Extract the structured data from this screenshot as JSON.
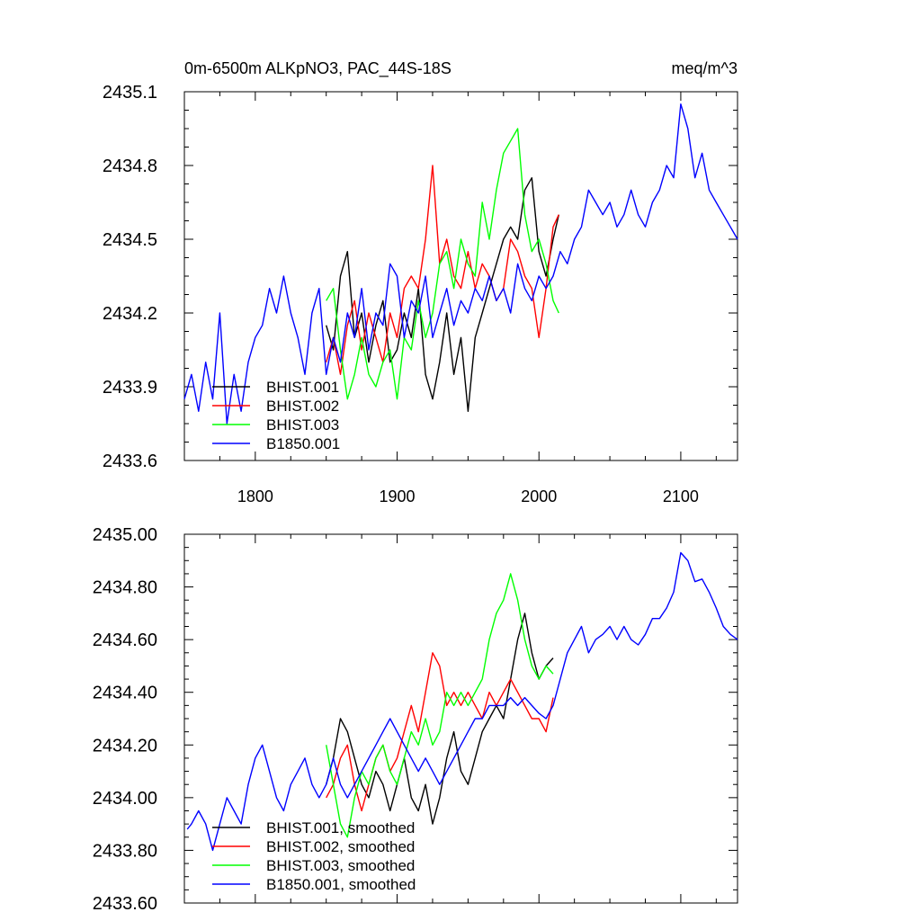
{
  "chart_data": [
    {
      "type": "line",
      "title": "0m-6500m ALKpNO3, PAC_44S-18S",
      "units": "meq/m^3",
      "xlabel": "",
      "ylabel": "",
      "xlim": [
        1750,
        2140
      ],
      "ylim": [
        2433.6,
        2435.1
      ],
      "xticks": [
        1800,
        1900,
        2000,
        2100
      ],
      "xtick_labels": [
        "1800",
        "1900",
        "2000",
        "2100"
      ],
      "yticks": [
        2433.6,
        2433.9,
        2434.2,
        2434.5,
        2434.8,
        2435.1
      ],
      "ytick_labels": [
        "2433.6",
        "2433.9",
        "2434.2",
        "2434.5",
        "2434.8",
        "2435.1"
      ],
      "legend_position": "bottom-left",
      "series": [
        {
          "name": "BHIST.001",
          "color": "#000000",
          "x": [
            1850,
            1855,
            1860,
            1865,
            1870,
            1875,
            1880,
            1885,
            1890,
            1895,
            1900,
            1905,
            1910,
            1915,
            1920,
            1925,
            1930,
            1935,
            1940,
            1945,
            1950,
            1955,
            1960,
            1965,
            1970,
            1975,
            1980,
            1985,
            1990,
            1995,
            2000,
            2005,
            2010,
            2014
          ],
          "values": [
            2434.15,
            2434.05,
            2434.35,
            2434.45,
            2434.1,
            2434.2,
            2434.0,
            2434.15,
            2434.25,
            2434.0,
            2434.05,
            2434.2,
            2434.1,
            2434.3,
            2433.95,
            2433.85,
            2434.0,
            2434.2,
            2433.95,
            2434.1,
            2433.8,
            2434.1,
            2434.2,
            2434.3,
            2434.4,
            2434.5,
            2434.55,
            2434.5,
            2434.7,
            2434.75,
            2434.45,
            2434.35,
            2434.5,
            2434.6
          ]
        },
        {
          "name": "BHIST.002",
          "color": "#ff0000",
          "x": [
            1850,
            1855,
            1860,
            1865,
            1870,
            1875,
            1880,
            1885,
            1890,
            1895,
            1900,
            1905,
            1910,
            1915,
            1920,
            1925,
            1930,
            1935,
            1940,
            1945,
            1950,
            1955,
            1960,
            1965,
            1970,
            1975,
            1980,
            1985,
            1990,
            1995,
            2000,
            2005,
            2010,
            2014
          ],
          "values": [
            2434.0,
            2434.1,
            2433.95,
            2434.15,
            2434.25,
            2434.05,
            2434.2,
            2434.1,
            2434.0,
            2434.2,
            2434.1,
            2434.3,
            2434.35,
            2434.3,
            2434.5,
            2434.8,
            2434.4,
            2434.5,
            2434.35,
            2434.3,
            2434.45,
            2434.3,
            2434.4,
            2434.35,
            2434.25,
            2434.3,
            2434.5,
            2434.45,
            2434.35,
            2434.3,
            2434.1,
            2434.3,
            2434.55,
            2434.6
          ]
        },
        {
          "name": "BHIST.003",
          "color": "#00ff00",
          "x": [
            1850,
            1855,
            1860,
            1865,
            1870,
            1875,
            1880,
            1885,
            1890,
            1895,
            1900,
            1905,
            1910,
            1915,
            1920,
            1925,
            1930,
            1935,
            1940,
            1945,
            1950,
            1955,
            1960,
            1965,
            1970,
            1975,
            1980,
            1985,
            1990,
            1995,
            2000,
            2005,
            2010,
            2014
          ],
          "values": [
            2434.25,
            2434.3,
            2434.05,
            2433.85,
            2433.95,
            2434.1,
            2433.95,
            2433.9,
            2434.0,
            2434.05,
            2433.85,
            2434.1,
            2434.05,
            2434.25,
            2434.1,
            2434.2,
            2434.4,
            2434.45,
            2434.3,
            2434.5,
            2434.4,
            2434.35,
            2434.65,
            2434.5,
            2434.7,
            2434.85,
            2434.9,
            2434.95,
            2434.6,
            2434.45,
            2434.5,
            2434.4,
            2434.25,
            2434.2
          ]
        },
        {
          "name": "B1850.001",
          "color": "#0000ff",
          "x": [
            1750,
            1755,
            1760,
            1765,
            1770,
            1775,
            1780,
            1785,
            1790,
            1795,
            1800,
            1805,
            1810,
            1815,
            1820,
            1825,
            1830,
            1835,
            1840,
            1845,
            1850,
            1855,
            1860,
            1865,
            1870,
            1875,
            1880,
            1885,
            1890,
            1895,
            1900,
            1905,
            1910,
            1915,
            1920,
            1925,
            1930,
            1935,
            1940,
            1945,
            1950,
            1955,
            1960,
            1965,
            1970,
            1975,
            1980,
            1985,
            1990,
            1995,
            2000,
            2005,
            2010,
            2015,
            2020,
            2025,
            2030,
            2035,
            2040,
            2045,
            2050,
            2055,
            2060,
            2065,
            2070,
            2075,
            2080,
            2085,
            2090,
            2095,
            2100,
            2105,
            2110,
            2115,
            2120,
            2125,
            2130,
            2135,
            2140
          ],
          "values": [
            2433.85,
            2433.95,
            2433.8,
            2434.0,
            2433.85,
            2434.2,
            2433.75,
            2433.95,
            2433.8,
            2434.0,
            2434.1,
            2434.15,
            2434.3,
            2434.2,
            2434.35,
            2434.2,
            2434.1,
            2433.95,
            2434.2,
            2434.3,
            2433.95,
            2434.1,
            2434.0,
            2434.2,
            2434.1,
            2434.3,
            2434.05,
            2434.2,
            2434.15,
            2434.4,
            2434.35,
            2434.1,
            2434.25,
            2434.2,
            2434.35,
            2434.1,
            2434.2,
            2434.3,
            2434.15,
            2434.25,
            2434.2,
            2434.3,
            2434.25,
            2434.35,
            2434.25,
            2434.3,
            2434.2,
            2434.4,
            2434.3,
            2434.25,
            2434.35,
            2434.3,
            2434.35,
            2434.45,
            2434.4,
            2434.5,
            2434.55,
            2434.7,
            2434.65,
            2434.6,
            2434.65,
            2434.55,
            2434.6,
            2434.7,
            2434.6,
            2434.55,
            2434.65,
            2434.7,
            2434.8,
            2434.75,
            2435.05,
            2434.95,
            2434.75,
            2434.85,
            2434.7,
            2434.65,
            2434.6,
            2434.55,
            2434.5
          ]
        }
      ]
    },
    {
      "type": "line",
      "title": "",
      "xlabel": "",
      "ylabel": "",
      "xlim": [
        1750,
        2140
      ],
      "ylim": [
        2433.6,
        2435.0
      ],
      "xticks": [
        1800,
        1900,
        2000,
        2100
      ],
      "yticks": [
        2433.6,
        2433.8,
        2434.0,
        2434.2,
        2434.4,
        2434.6,
        2434.8,
        2435.0
      ],
      "ytick_labels": [
        "2433.60",
        "2433.80",
        "2434.00",
        "2434.20",
        "2434.40",
        "2434.60",
        "2434.80",
        "2435.00"
      ],
      "legend_position": "bottom-left",
      "series": [
        {
          "name": "BHIST.001, smoothed",
          "color": "#000000",
          "x": [
            1850,
            1855,
            1860,
            1865,
            1870,
            1875,
            1880,
            1885,
            1890,
            1895,
            1900,
            1905,
            1910,
            1915,
            1920,
            1925,
            1930,
            1935,
            1940,
            1945,
            1950,
            1955,
            1960,
            1965,
            1970,
            1975,
            1980,
            1985,
            1990,
            1995,
            2000,
            2005,
            2010
          ],
          "values": [
            2434.05,
            2434.15,
            2434.3,
            2434.25,
            2434.15,
            2434.05,
            2434.0,
            2434.1,
            2434.05,
            2433.95,
            2434.05,
            2434.15,
            2434.0,
            2433.95,
            2434.05,
            2433.9,
            2434.0,
            2434.15,
            2434.25,
            2434.1,
            2434.05,
            2434.15,
            2434.25,
            2434.3,
            2434.35,
            2434.3,
            2434.45,
            2434.6,
            2434.7,
            2434.55,
            2434.45,
            2434.5,
            2434.53
          ]
        },
        {
          "name": "BHIST.002, smoothed",
          "color": "#ff0000",
          "x": [
            1850,
            1855,
            1860,
            1865,
            1870,
            1875,
            1880,
            1885,
            1890,
            1895,
            1900,
            1905,
            1910,
            1915,
            1920,
            1925,
            1930,
            1935,
            1940,
            1945,
            1950,
            1955,
            1960,
            1965,
            1970,
            1975,
            1980,
            1985,
            1990,
            1995,
            2000,
            2005,
            2010
          ],
          "values": [
            2434.0,
            2434.05,
            2434.15,
            2434.2,
            2434.05,
            2433.95,
            2434.05,
            2434.15,
            2434.2,
            2434.1,
            2434.15,
            2434.25,
            2434.35,
            2434.25,
            2434.4,
            2434.55,
            2434.5,
            2434.35,
            2434.4,
            2434.35,
            2434.4,
            2434.35,
            2434.3,
            2434.4,
            2434.35,
            2434.4,
            2434.45,
            2434.4,
            2434.35,
            2434.3,
            2434.3,
            2434.25,
            2434.38
          ]
        },
        {
          "name": "BHIST.003, smoothed",
          "color": "#00ff00",
          "x": [
            1850,
            1855,
            1860,
            1865,
            1870,
            1875,
            1880,
            1885,
            1890,
            1895,
            1900,
            1905,
            1910,
            1915,
            1920,
            1925,
            1930,
            1935,
            1940,
            1945,
            1950,
            1955,
            1960,
            1965,
            1970,
            1975,
            1980,
            1985,
            1990,
            1995,
            2000,
            2005,
            2010
          ],
          "values": [
            2434.2,
            2434.05,
            2433.9,
            2433.85,
            2434.0,
            2434.1,
            2434.05,
            2434.15,
            2434.2,
            2434.1,
            2434.05,
            2434.15,
            2434.25,
            2434.2,
            2434.3,
            2434.2,
            2434.25,
            2434.4,
            2434.35,
            2434.4,
            2434.35,
            2434.4,
            2434.45,
            2434.6,
            2434.7,
            2434.75,
            2434.85,
            2434.75,
            2434.6,
            2434.5,
            2434.45,
            2434.5,
            2434.47
          ]
        },
        {
          "name": "B1850.001, smoothed",
          "color": "#0000ff",
          "x": [
            1752,
            1755,
            1760,
            1765,
            1770,
            1775,
            1780,
            1785,
            1790,
            1795,
            1800,
            1805,
            1810,
            1815,
            1820,
            1825,
            1830,
            1835,
            1840,
            1845,
            1850,
            1855,
            1860,
            1865,
            1870,
            1875,
            1880,
            1885,
            1890,
            1895,
            1900,
            1905,
            1910,
            1915,
            1920,
            1925,
            1930,
            1935,
            1940,
            1945,
            1950,
            1955,
            1960,
            1965,
            1970,
            1975,
            1980,
            1985,
            1990,
            1995,
            2000,
            2005,
            2010,
            2015,
            2020,
            2025,
            2030,
            2035,
            2040,
            2045,
            2050,
            2055,
            2060,
            2065,
            2070,
            2075,
            2080,
            2085,
            2090,
            2095,
            2100,
            2105,
            2110,
            2115,
            2120,
            2125,
            2130,
            2135,
            2140
          ],
          "values": [
            2433.88,
            2433.9,
            2433.95,
            2433.9,
            2433.8,
            2433.9,
            2434.0,
            2433.95,
            2433.9,
            2434.05,
            2434.15,
            2434.2,
            2434.1,
            2434.0,
            2433.95,
            2434.05,
            2434.1,
            2434.15,
            2434.05,
            2434.0,
            2434.05,
            2434.15,
            2434.05,
            2434.0,
            2434.05,
            2434.1,
            2434.15,
            2434.2,
            2434.25,
            2434.3,
            2434.25,
            2434.2,
            2434.15,
            2434.1,
            2434.15,
            2434.1,
            2434.05,
            2434.1,
            2434.15,
            2434.2,
            2434.25,
            2434.3,
            2434.3,
            2434.35,
            2434.35,
            2434.35,
            2434.38,
            2434.35,
            2434.38,
            2434.35,
            2434.32,
            2434.3,
            2434.35,
            2434.45,
            2434.55,
            2434.6,
            2434.65,
            2434.55,
            2434.6,
            2434.62,
            2434.65,
            2434.6,
            2434.65,
            2434.6,
            2434.58,
            2434.62,
            2434.68,
            2434.68,
            2434.72,
            2434.78,
            2434.93,
            2434.9,
            2434.82,
            2434.83,
            2434.78,
            2434.72,
            2434.65,
            2434.62,
            2434.6
          ]
        }
      ]
    }
  ]
}
